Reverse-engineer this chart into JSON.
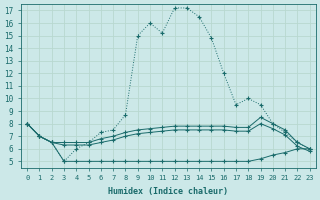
{
  "xlabel": "Humidex (Indice chaleur)",
  "background_color": "#cce8e8",
  "grid_color": "#b8d8d0",
  "line_color": "#1a6b6b",
  "xlim": [
    -0.5,
    23.5
  ],
  "ylim": [
    4.5,
    17.5
  ],
  "xticks": [
    0,
    1,
    2,
    3,
    4,
    5,
    6,
    7,
    8,
    9,
    10,
    11,
    12,
    13,
    14,
    15,
    16,
    17,
    18,
    19,
    20,
    21,
    22,
    23
  ],
  "yticks": [
    5,
    6,
    7,
    8,
    9,
    10,
    11,
    12,
    13,
    14,
    15,
    16,
    17
  ],
  "main_x": [
    0,
    1,
    2,
    3,
    4,
    5,
    6,
    7,
    8,
    9,
    10,
    11,
    12,
    13,
    14,
    15,
    16,
    17,
    18,
    19,
    20,
    21,
    22,
    23
  ],
  "main_y": [
    8.0,
    7.0,
    6.5,
    5.0,
    6.0,
    6.5,
    7.3,
    7.5,
    8.7,
    15.0,
    16.0,
    15.2,
    17.2,
    17.2,
    16.5,
    14.8,
    12.0,
    9.5,
    10.0,
    9.5,
    8.0,
    7.3,
    6.5,
    6.0
  ],
  "line2_x": [
    0,
    1,
    2,
    3,
    4,
    5,
    6,
    7,
    8,
    9,
    10,
    11,
    12,
    13,
    14,
    15,
    16,
    17,
    18,
    19,
    20,
    21,
    22,
    23
  ],
  "line2_y": [
    8.0,
    7.0,
    6.5,
    6.5,
    6.5,
    6.5,
    6.8,
    7.0,
    7.3,
    7.5,
    7.6,
    7.7,
    7.8,
    7.8,
    7.8,
    7.8,
    7.8,
    7.7,
    7.7,
    8.5,
    8.0,
    7.5,
    6.5,
    6.0
  ],
  "line3_x": [
    0,
    1,
    2,
    3,
    4,
    5,
    6,
    7,
    8,
    9,
    10,
    11,
    12,
    13,
    14,
    15,
    16,
    17,
    18,
    19,
    20,
    21,
    22,
    23
  ],
  "line3_y": [
    8.0,
    7.0,
    6.5,
    6.3,
    6.3,
    6.3,
    6.5,
    6.7,
    7.0,
    7.2,
    7.3,
    7.4,
    7.5,
    7.5,
    7.5,
    7.5,
    7.5,
    7.4,
    7.4,
    8.0,
    7.6,
    7.1,
    6.2,
    5.8
  ],
  "line4_x": [
    0,
    1,
    2,
    3,
    4,
    5,
    6,
    7,
    8,
    9,
    10,
    11,
    12,
    13,
    14,
    15,
    16,
    17,
    18,
    19,
    20,
    21,
    22,
    23
  ],
  "line4_y": [
    8.0,
    7.0,
    6.5,
    5.0,
    5.0,
    5.0,
    5.0,
    5.0,
    5.0,
    5.0,
    5.0,
    5.0,
    5.0,
    5.0,
    5.0,
    5.0,
    5.0,
    5.0,
    5.0,
    5.2,
    5.5,
    5.7,
    6.0,
    6.0
  ]
}
